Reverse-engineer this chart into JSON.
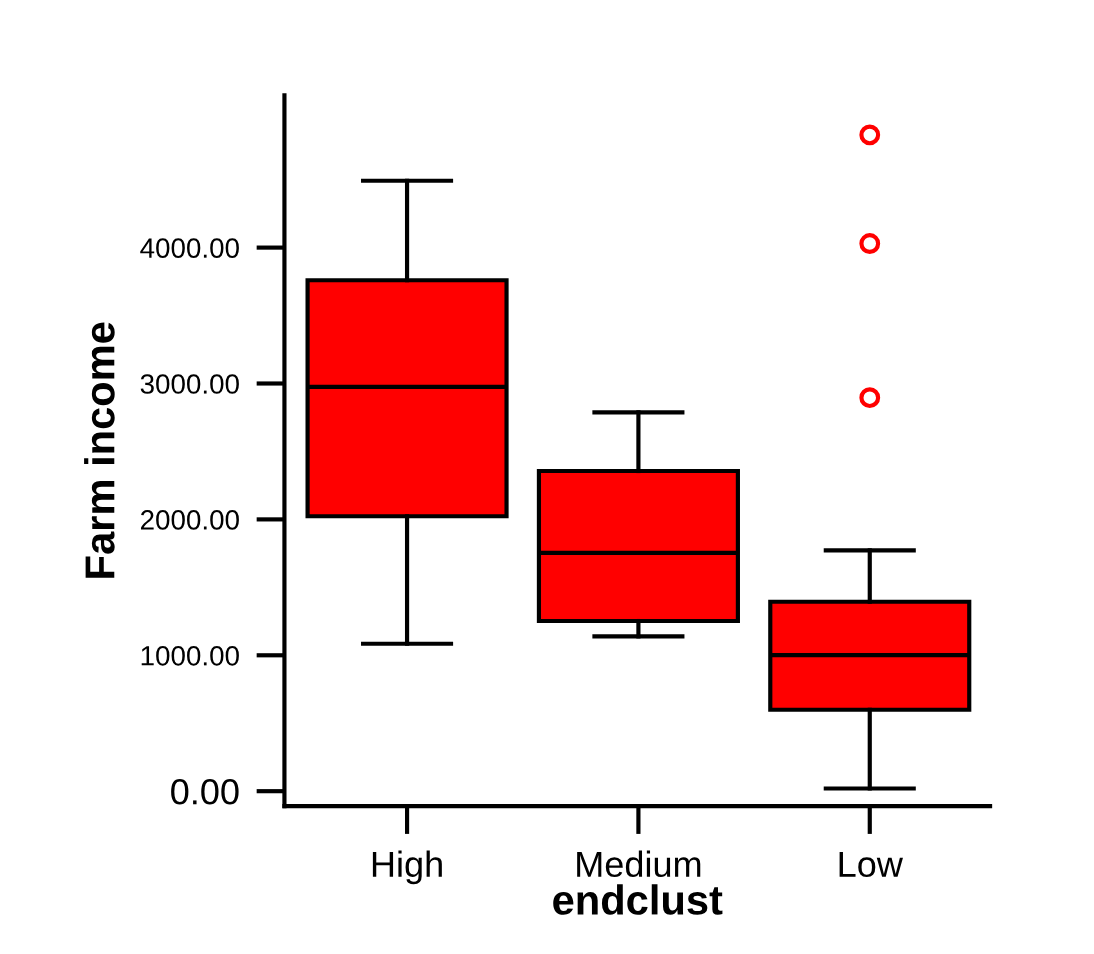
{
  "chart_data": {
    "type": "box",
    "xlabel": "endclust",
    "ylabel": "Farm income",
    "categories": [
      "High",
      "Medium",
      "Low"
    ],
    "color": "#ff0000",
    "boxes": [
      {
        "low": 1085,
        "q1": 2023,
        "median": 2975,
        "q3": 3760,
        "high": 4492
      },
      {
        "low": 1139,
        "q1": 1252,
        "median": 1753,
        "q3": 2356,
        "high": 2788
      },
      {
        "low": 20,
        "q1": 599,
        "median": 1001,
        "q3": 1394,
        "high": 1772,
        "outliers": [
          2896,
          4030,
          4829
        ]
      }
    ],
    "ylim": [
      -110,
      5120
    ],
    "yticks": [
      {
        "value": 0,
        "label": "0.00"
      },
      {
        "value": 1000,
        "label": "1000.00"
      },
      {
        "value": 2000,
        "label": "2000.00"
      },
      {
        "value": 3000,
        "label": "3000.00"
      },
      {
        "value": 4000,
        "label": "4000.00"
      }
    ],
    "grid": false
  }
}
